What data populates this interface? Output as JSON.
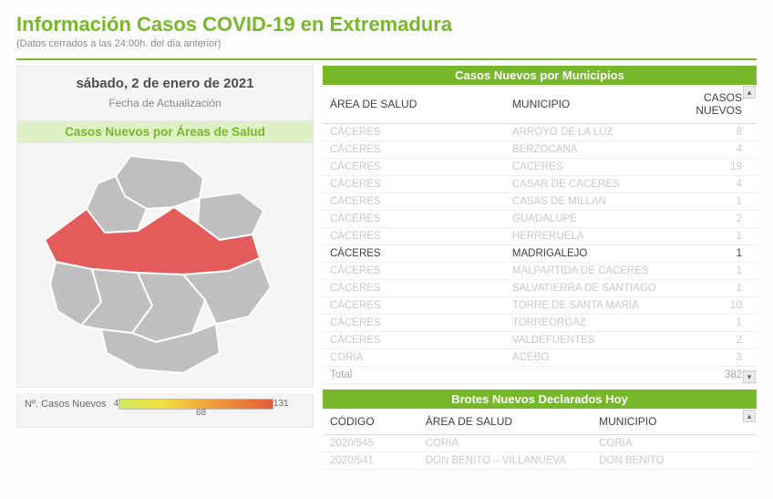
{
  "header": {
    "title": "Información Casos COVID-19 en Extremadura",
    "subtitle": "(Datos cerrados a las 24:00h. del día anterior)"
  },
  "date_panel": {
    "value": "sábado, 2 de enero de 2021",
    "label": "Fecha de Actualización"
  },
  "map_panel": {
    "title": "Casos Nuevos por Áreas de Salud",
    "legend_label": "Nº. Casos Nuevos",
    "legend_min": "4",
    "legend_mid": "68",
    "legend_max": "131",
    "map_colors": {
      "default": "#bfbfbf",
      "highlight": "#e45b5b",
      "stroke": "#ffffff"
    }
  },
  "municipios": {
    "panel_title": "Casos Nuevos por Municipios",
    "cols": {
      "area": "ÁREA DE SALUD",
      "muni": "MUNICIPIO",
      "casos": "CASOS NUEVOS"
    },
    "rows": [
      {
        "area": "CÁCERES",
        "muni": "ARROYO DE LA LUZ",
        "casos": "8",
        "hl": false
      },
      {
        "area": "CÁCERES",
        "muni": "BERZOCANA",
        "casos": "4",
        "hl": false
      },
      {
        "area": "CÁCERES",
        "muni": "CACERES",
        "casos": "19",
        "hl": false
      },
      {
        "area": "CÁCERES",
        "muni": "CASAR DE CACERES",
        "casos": "4",
        "hl": false
      },
      {
        "area": "CÁCERES",
        "muni": "CASAS DE MILLAN",
        "casos": "1",
        "hl": false
      },
      {
        "area": "CÁCERES",
        "muni": "GUADALUPE",
        "casos": "2",
        "hl": false
      },
      {
        "area": "CÁCERES",
        "muni": "HERRERUELA",
        "casos": "1",
        "hl": false
      },
      {
        "area": "CÁCERES",
        "muni": "MADRIGALEJO",
        "casos": "1",
        "hl": true
      },
      {
        "area": "CÁCERES",
        "muni": "MALPARTIDA DE CACERES",
        "casos": "1",
        "hl": false
      },
      {
        "area": "CÁCERES",
        "muni": "SALVATIERRA DE SANTIAGO",
        "casos": "1",
        "hl": false
      },
      {
        "area": "CÁCERES",
        "muni": "TORRE DE SANTA MARIA",
        "casos": "10",
        "hl": false
      },
      {
        "area": "CÁCERES",
        "muni": "TORREORGAZ",
        "casos": "1",
        "hl": false
      },
      {
        "area": "CÁCERES",
        "muni": "VALDEFUENTES",
        "casos": "2",
        "hl": false
      },
      {
        "area": "CORIA",
        "muni": "ACEBO",
        "casos": "3",
        "hl": false
      }
    ],
    "total_label": "Total",
    "total_value": "382"
  },
  "brotes": {
    "panel_title": "Brotes Nuevos Declarados Hoy",
    "cols": {
      "codigo": "CÓDIGO",
      "area": "ÁREA DE SALUD",
      "muni": "MUNICIPIO"
    },
    "rows": [
      {
        "codigo": "2020/545",
        "area": "CORIA",
        "muni": "CORIA"
      },
      {
        "codigo": "2020/541",
        "area": "DON BENITO – VILLANUEVA",
        "muni": "DON BENITO"
      }
    ]
  },
  "theme": {
    "accent": "#76b82a"
  }
}
